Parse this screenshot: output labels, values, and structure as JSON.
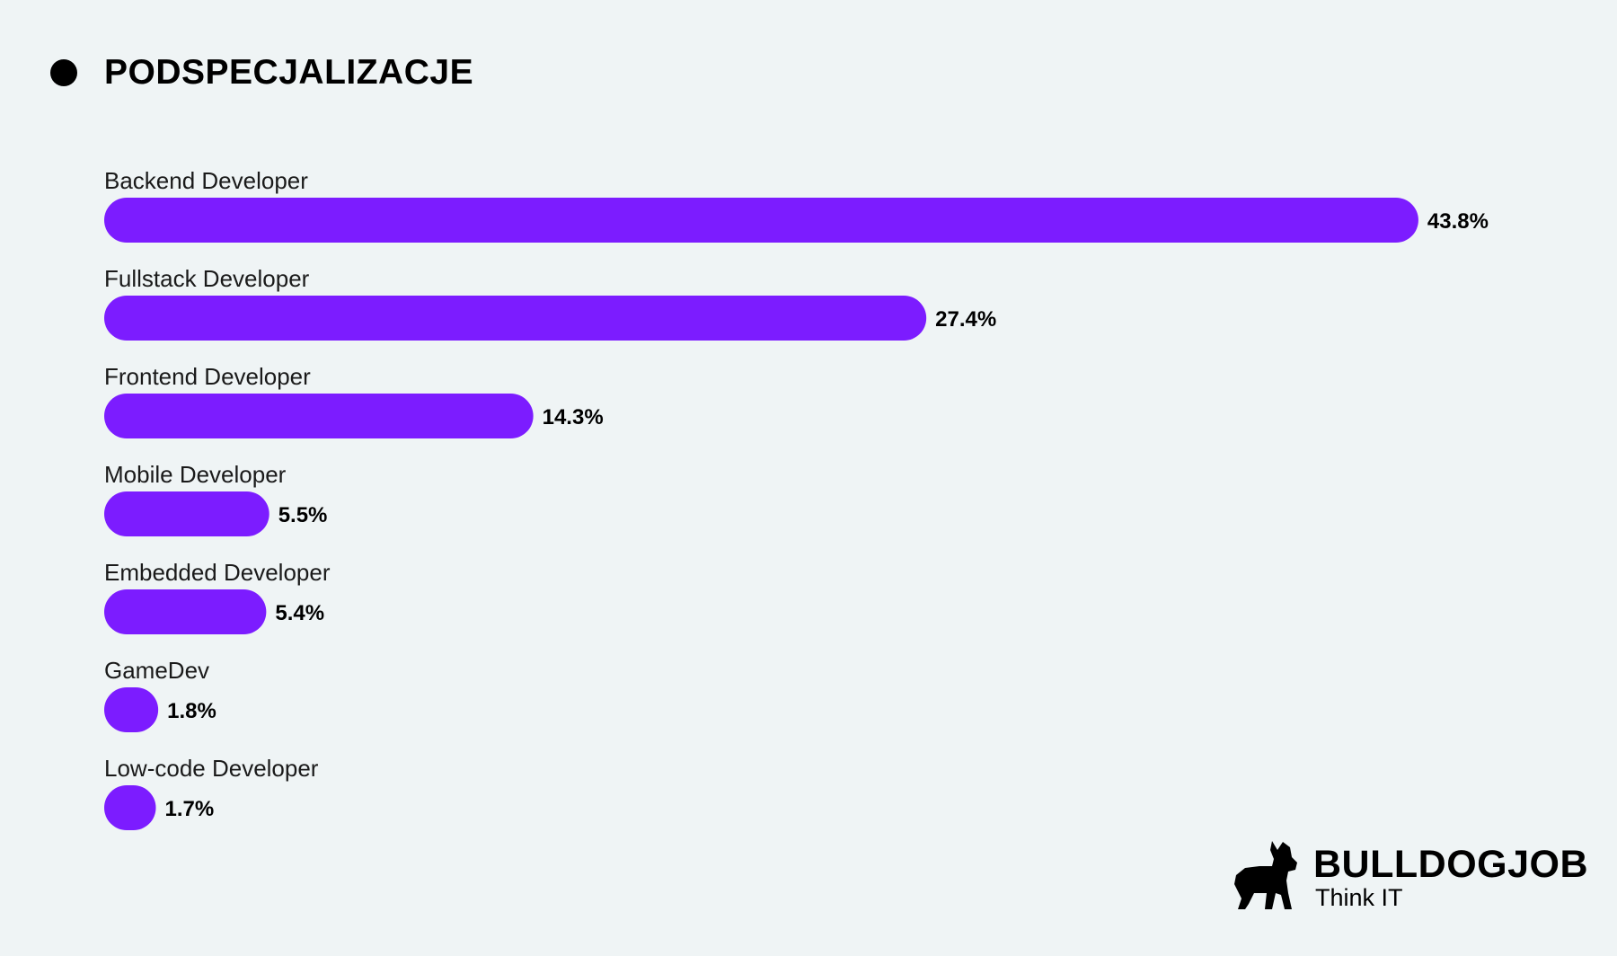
{
  "header": {
    "title": "PODSPECJALIZACJE"
  },
  "colors": {
    "bar": "#7c1cff",
    "background": "#eff4f5",
    "text": "#000000"
  },
  "chart_data": {
    "type": "bar",
    "orientation": "horizontal",
    "title": "PODSPECJALIZACJE",
    "categories": [
      "Backend Developer",
      "Fullstack Developer",
      "Frontend Developer",
      "Mobile Developer",
      "Embedded Developer",
      "GameDev",
      "Low-code Developer"
    ],
    "values": [
      43.8,
      27.4,
      14.3,
      5.5,
      5.4,
      1.8,
      1.7
    ],
    "value_labels": [
      "43.8%",
      "27.4%",
      "14.3%",
      "5.5%",
      "5.4%",
      "1.8%",
      "1.7%"
    ],
    "unit": "%",
    "grid": false,
    "legend": "none"
  },
  "brand": {
    "name": "BULLDOGJOB",
    "tagline": "Think IT",
    "icon": "bulldog-icon"
  }
}
